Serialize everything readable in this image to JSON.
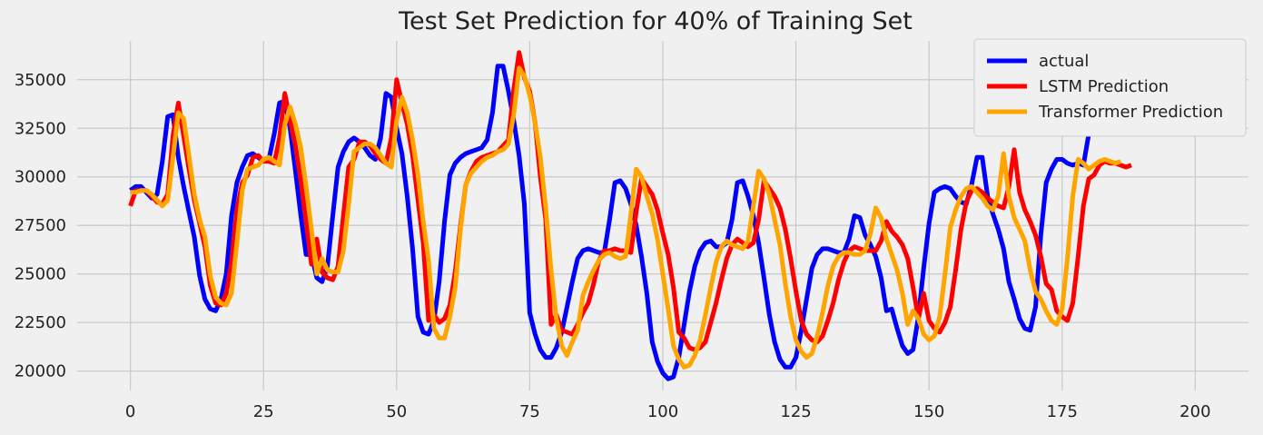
{
  "chart_data": {
    "type": "line",
    "title": "Test Set Prediction for 40% of Training Set",
    "xlabel": "",
    "ylabel": "",
    "xlim": [
      -10,
      210
    ],
    "ylim": [
      19000,
      37000
    ],
    "xticks": [
      0,
      25,
      50,
      75,
      100,
      125,
      150,
      175,
      200
    ],
    "yticks": [
      20000,
      22500,
      25000,
      27500,
      30000,
      32500,
      35000
    ],
    "grid": true,
    "legend_position": "top-right",
    "x_start": 0,
    "series": [
      {
        "name": "actual",
        "color": "#0000ff",
        "values": [
          29300,
          29500,
          29500,
          29200,
          28900,
          29100,
          30800,
          33100,
          33200,
          31000,
          29500,
          28200,
          26900,
          24900,
          23700,
          23200,
          23100,
          23700,
          25000,
          28000,
          29700,
          30500,
          31100,
          31200,
          31000,
          30800,
          30900,
          32200,
          33800,
          33900,
          32500,
          30300,
          28000,
          26000,
          26000,
          24800,
          24600,
          25400,
          28000,
          30500,
          31300,
          31800,
          32000,
          31800,
          31500,
          31100,
          30900,
          32000,
          34300,
          34100,
          32500,
          31200,
          29000,
          26300,
          22800,
          22000,
          21900,
          22600,
          24600,
          27700,
          30100,
          30700,
          31000,
          31200,
          31300,
          31400,
          31500,
          31900,
          33300,
          35700,
          35700,
          34400,
          32900,
          31100,
          28600,
          23000,
          21900,
          21100,
          20700,
          20700,
          21200,
          22000,
          23300,
          24600,
          25800,
          26200,
          26300,
          26200,
          26100,
          26100,
          27800,
          29700,
          29800,
          29400,
          28600,
          27500,
          25900,
          24000,
          21500,
          20500,
          19900,
          19600,
          19700,
          20700,
          22400,
          24100,
          25400,
          26200,
          26600,
          26700,
          26400,
          26400,
          26600,
          27800,
          29700,
          29800,
          29000,
          28000,
          26600,
          24800,
          22900,
          21500,
          20600,
          20200,
          20200,
          20700,
          22100,
          23700,
          25300,
          26000,
          26300,
          26300,
          26200,
          26100,
          26100,
          26800,
          28000,
          27900,
          27000,
          26500,
          25900,
          24800,
          23100,
          23200,
          22200,
          21300,
          20900,
          21100,
          22800,
          25300,
          27600,
          29200,
          29400,
          29500,
          29400,
          29000,
          28700,
          28600,
          29600,
          31000,
          31000,
          29000,
          28100,
          27300,
          26300,
          24600,
          23700,
          22700,
          22200,
          22100,
          23300,
          27000,
          29700,
          30400,
          30900,
          30900,
          30700,
          30600,
          30700,
          30600,
          32200
        ]
      },
      {
        "name": "LSTM Prediction",
        "color": "#ff0000",
        "values": [
          28500,
          29300,
          29300,
          29300,
          29000,
          28700,
          28600,
          29100,
          32100,
          33800,
          32100,
          30400,
          28800,
          27600,
          26400,
          24400,
          23500,
          23400,
          24000,
          25600,
          28300,
          29700,
          30100,
          31000,
          31100,
          30800,
          30800,
          30700,
          32000,
          34300,
          32900,
          31600,
          29800,
          27700,
          25500,
          26800,
          25100,
          24800,
          24700,
          25400,
          28000,
          30500,
          30900,
          31800,
          31800,
          31600,
          31200,
          30900,
          30700,
          32000,
          35000,
          33800,
          32700,
          31100,
          28800,
          26600,
          22600,
          22900,
          22500,
          22700,
          23400,
          25100,
          27500,
          29600,
          30300,
          30800,
          31000,
          31100,
          31200,
          31300,
          31600,
          31900,
          34500,
          36400,
          35100,
          34400,
          32800,
          30000,
          27800,
          22400,
          22900,
          22100,
          22000,
          21900,
          22400,
          23000,
          23500,
          24500,
          25700,
          26200,
          26200,
          26300,
          26200,
          26200,
          26100,
          28200,
          29900,
          29500,
          29100,
          28300,
          27100,
          26000,
          24300,
          22000,
          21700,
          21200,
          21100,
          21200,
          21500,
          22500,
          23500,
          24700,
          25800,
          26500,
          26800,
          26600,
          26400,
          26600,
          27800,
          29800,
          29400,
          29000,
          28400,
          27300,
          25800,
          24100,
          22600,
          21900,
          21600,
          21500,
          21800,
          22600,
          23500,
          24700,
          25600,
          26200,
          26400,
          26300,
          26200,
          26200,
          26200,
          26700,
          27700,
          27200,
          26900,
          26500,
          25800,
          24300,
          22700,
          24000,
          22600,
          22200,
          22000,
          22500,
          23300,
          25200,
          27300,
          28700,
          29300,
          29400,
          29200,
          28900,
          28700,
          28500,
          28400,
          29500,
          31400,
          29200,
          28300,
          27700,
          27000,
          25900,
          24500,
          24200,
          23100,
          22800,
          22600,
          23500,
          25900,
          28500,
          29900,
          30100,
          30600,
          30800,
          30700,
          30700,
          30600,
          30500,
          30600
        ]
      },
      {
        "name": "Transformer Prediction",
        "color": "#ffa500",
        "values": [
          29200,
          29200,
          29300,
          29300,
          29100,
          28800,
          28500,
          28800,
          31000,
          33300,
          33000,
          31100,
          29100,
          27800,
          26900,
          24900,
          23800,
          23500,
          23400,
          24000,
          26600,
          29300,
          30400,
          30500,
          30600,
          30900,
          31000,
          30800,
          30600,
          32700,
          33600,
          32700,
          31500,
          29500,
          27300,
          25000,
          25800,
          25200,
          25100,
          25100,
          26200,
          28600,
          31300,
          31500,
          31700,
          31700,
          31500,
          31100,
          30700,
          30500,
          32900,
          34100,
          33300,
          31900,
          30100,
          27700,
          25700,
          22200,
          21700,
          21700,
          22800,
          24300,
          27300,
          29600,
          30200,
          30500,
          30800,
          31000,
          31100,
          31300,
          31400,
          31700,
          33200,
          35600,
          35200,
          34200,
          32800,
          31000,
          28400,
          25200,
          22700,
          21300,
          20800,
          21500,
          22100,
          23900,
          24600,
          25200,
          25700,
          26000,
          26100,
          25900,
          25800,
          25900,
          28100,
          30400,
          30000,
          29000,
          28100,
          26800,
          25000,
          23200,
          21300,
          20600,
          20200,
          20300,
          20800,
          21600,
          22900,
          24300,
          25600,
          26400,
          26700,
          26500,
          26400,
          26300,
          26700,
          28500,
          30300,
          29900,
          29100,
          27800,
          26500,
          24500,
          22800,
          21600,
          21000,
          20700,
          20900,
          21800,
          23000,
          24400,
          25400,
          25900,
          26100,
          26100,
          26000,
          26000,
          26200,
          27100,
          28400,
          27900,
          26800,
          26000,
          25200,
          24000,
          22400,
          23100,
          22700,
          21900,
          21600,
          21800,
          22800,
          25000,
          27400,
          28300,
          29000,
          29400,
          29500,
          29200,
          28900,
          28500,
          28300,
          29000,
          31200,
          29000,
          27900,
          27300,
          26700,
          25200,
          24100,
          23700,
          23100,
          22600,
          22400,
          23200,
          25800,
          29000,
          30900,
          30700,
          30400,
          30600,
          30800,
          30900,
          30800,
          30700,
          30800
        ]
      }
    ]
  }
}
